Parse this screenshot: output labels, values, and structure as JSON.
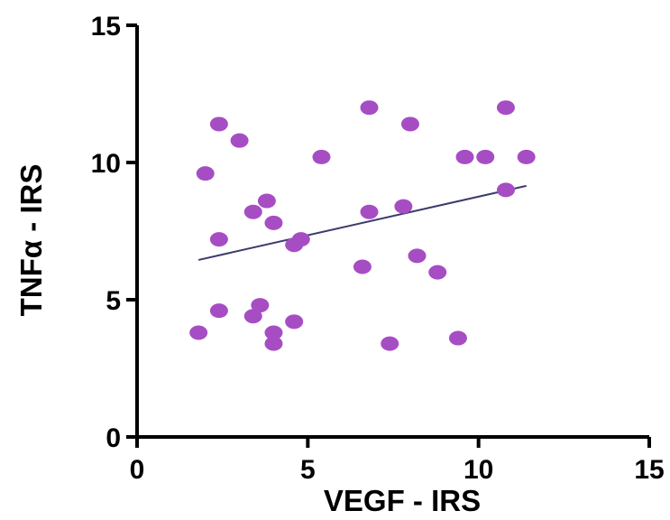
{
  "chart_data": {
    "type": "scatter",
    "xlabel": "VEGF - IRS",
    "ylabel": "TNFα - IRS",
    "xlim": [
      0,
      15
    ],
    "ylim": [
      0,
      15
    ],
    "x_ticks": [
      0,
      5,
      10,
      15
    ],
    "y_ticks": [
      0,
      5,
      10,
      15
    ],
    "grid": false,
    "legend": "none",
    "point_color": "#a64dc4",
    "line_color": "#3b3b6e",
    "points": [
      {
        "x": 1.8,
        "y": 3.8
      },
      {
        "x": 2.0,
        "y": 9.6
      },
      {
        "x": 2.4,
        "y": 11.4
      },
      {
        "x": 2.4,
        "y": 7.2
      },
      {
        "x": 2.4,
        "y": 4.6
      },
      {
        "x": 3.0,
        "y": 10.8
      },
      {
        "x": 3.4,
        "y": 8.2
      },
      {
        "x": 3.4,
        "y": 4.4
      },
      {
        "x": 3.6,
        "y": 4.8
      },
      {
        "x": 3.8,
        "y": 8.6
      },
      {
        "x": 4.0,
        "y": 7.8
      },
      {
        "x": 4.0,
        "y": 3.8
      },
      {
        "x": 4.0,
        "y": 3.4
      },
      {
        "x": 4.6,
        "y": 7.0
      },
      {
        "x": 4.6,
        "y": 4.2
      },
      {
        "x": 4.8,
        "y": 7.2
      },
      {
        "x": 5.4,
        "y": 10.2
      },
      {
        "x": 6.6,
        "y": 6.2
      },
      {
        "x": 6.8,
        "y": 12.0
      },
      {
        "x": 6.8,
        "y": 8.2
      },
      {
        "x": 7.4,
        "y": 3.4
      },
      {
        "x": 7.8,
        "y": 8.4
      },
      {
        "x": 8.0,
        "y": 11.4
      },
      {
        "x": 8.2,
        "y": 6.6
      },
      {
        "x": 8.8,
        "y": 6.0
      },
      {
        "x": 9.4,
        "y": 3.6
      },
      {
        "x": 9.6,
        "y": 10.2
      },
      {
        "x": 10.2,
        "y": 10.2
      },
      {
        "x": 10.8,
        "y": 12.0
      },
      {
        "x": 10.8,
        "y": 9.0
      },
      {
        "x": 11.4,
        "y": 10.2
      }
    ],
    "trend_line": {
      "x": [
        1.8,
        11.4
      ],
      "y": [
        6.45,
        9.15
      ]
    }
  }
}
